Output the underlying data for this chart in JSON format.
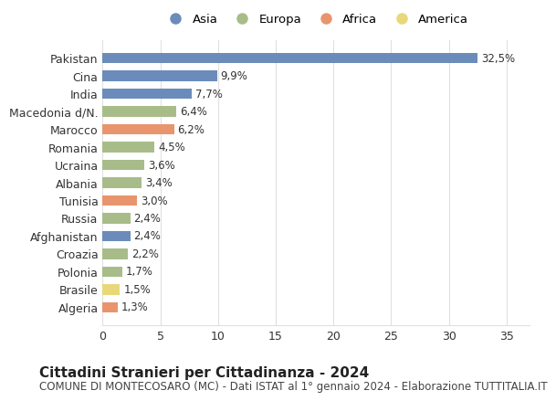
{
  "countries": [
    "Pakistan",
    "Cina",
    "India",
    "Macedonia d/N.",
    "Marocco",
    "Romania",
    "Ucraina",
    "Albania",
    "Tunisia",
    "Russia",
    "Afghanistan",
    "Croazia",
    "Polonia",
    "Brasile",
    "Algeria"
  ],
  "values": [
    32.5,
    9.9,
    7.7,
    6.4,
    6.2,
    4.5,
    3.6,
    3.4,
    3.0,
    2.4,
    2.4,
    2.2,
    1.7,
    1.5,
    1.3
  ],
  "labels": [
    "32,5%",
    "9,9%",
    "7,7%",
    "6,4%",
    "6,2%",
    "4,5%",
    "3,6%",
    "3,4%",
    "3,0%",
    "2,4%",
    "2,4%",
    "2,2%",
    "1,7%",
    "1,5%",
    "1,3%"
  ],
  "continents": [
    "Asia",
    "Asia",
    "Asia",
    "Europa",
    "Africa",
    "Europa",
    "Europa",
    "Europa",
    "Africa",
    "Europa",
    "Asia",
    "Europa",
    "Europa",
    "America",
    "Africa"
  ],
  "colors": {
    "Asia": "#6b8cba",
    "Europa": "#a8bc8a",
    "Africa": "#e8956d",
    "America": "#e8d87a"
  },
  "legend_order": [
    "Asia",
    "Europa",
    "Africa",
    "America"
  ],
  "title": "Cittadini Stranieri per Cittadinanza - 2024",
  "subtitle": "COMUNE DI MONTECOSARO (MC) - Dati ISTAT al 1° gennaio 2024 - Elaborazione TUTTITALIA.IT",
  "xlim": [
    0,
    37
  ],
  "xticks": [
    0,
    5,
    10,
    15,
    20,
    25,
    30,
    35
  ],
  "background_color": "#ffffff",
  "grid_color": "#e0e0e0",
  "bar_height": 0.6,
  "title_fontsize": 11,
  "subtitle_fontsize": 8.5,
  "tick_fontsize": 9,
  "label_fontsize": 8.5,
  "legend_fontsize": 9.5,
  "marker_size": 10
}
